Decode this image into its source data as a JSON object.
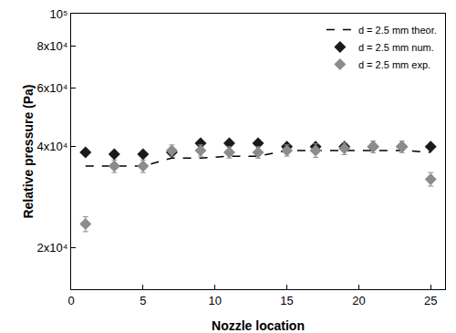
{
  "chart_data": {
    "type": "scatter",
    "x_label": "Nozzle location",
    "y_label": "Relative pressure (Pa)",
    "x": [
      1,
      3,
      5,
      7,
      9,
      11,
      13,
      15,
      17,
      19,
      21,
      23,
      25
    ],
    "series": [
      {
        "name": "d = 2.5 mm theor.",
        "type": "line",
        "line_style": "dashed",
        "color": "#000000",
        "values": [
          35000,
          35000,
          35000,
          37000,
          37000,
          37500,
          37500,
          39000,
          39000,
          39000,
          39000,
          39000,
          38500
        ]
      },
      {
        "name": "d = 2.5 mm num.",
        "type": "scatter",
        "marker": "diamond",
        "color": "#1a1a1a",
        "values": [
          38500,
          38000,
          38000,
          38500,
          41000,
          41000,
          41000,
          40000,
          40000,
          40000,
          40000,
          40000,
          40000
        ]
      },
      {
        "name": "d = 2.5 mm exp.",
        "type": "scatter",
        "marker": "diamond",
        "color": "#8c8c8c",
        "values": [
          23500,
          35000,
          35000,
          39000,
          39000,
          38500,
          38500,
          39000,
          39000,
          39500,
          40000,
          40000,
          32000
        ],
        "errors": [
          1200,
          1500,
          1500,
          1500,
          1500,
          1500,
          1500,
          1500,
          1800,
          1600,
          1600,
          1600,
          1500
        ]
      }
    ],
    "log": "y",
    "xlim": [
      0,
      26
    ],
    "xticks": [
      0,
      5,
      10,
      15,
      20,
      25
    ],
    "ylim": [
      15000,
      100000
    ],
    "yticks": [
      {
        "value": 20000,
        "label": "2x10⁴"
      },
      {
        "value": 40000,
        "label": "4x10⁴"
      },
      {
        "value": 60000,
        "label": "6x10⁴"
      },
      {
        "value": 80000,
        "label": "8x10⁴"
      },
      {
        "value": 100000,
        "label": "10⁵"
      }
    ],
    "grid": false,
    "legend": "upper right"
  }
}
